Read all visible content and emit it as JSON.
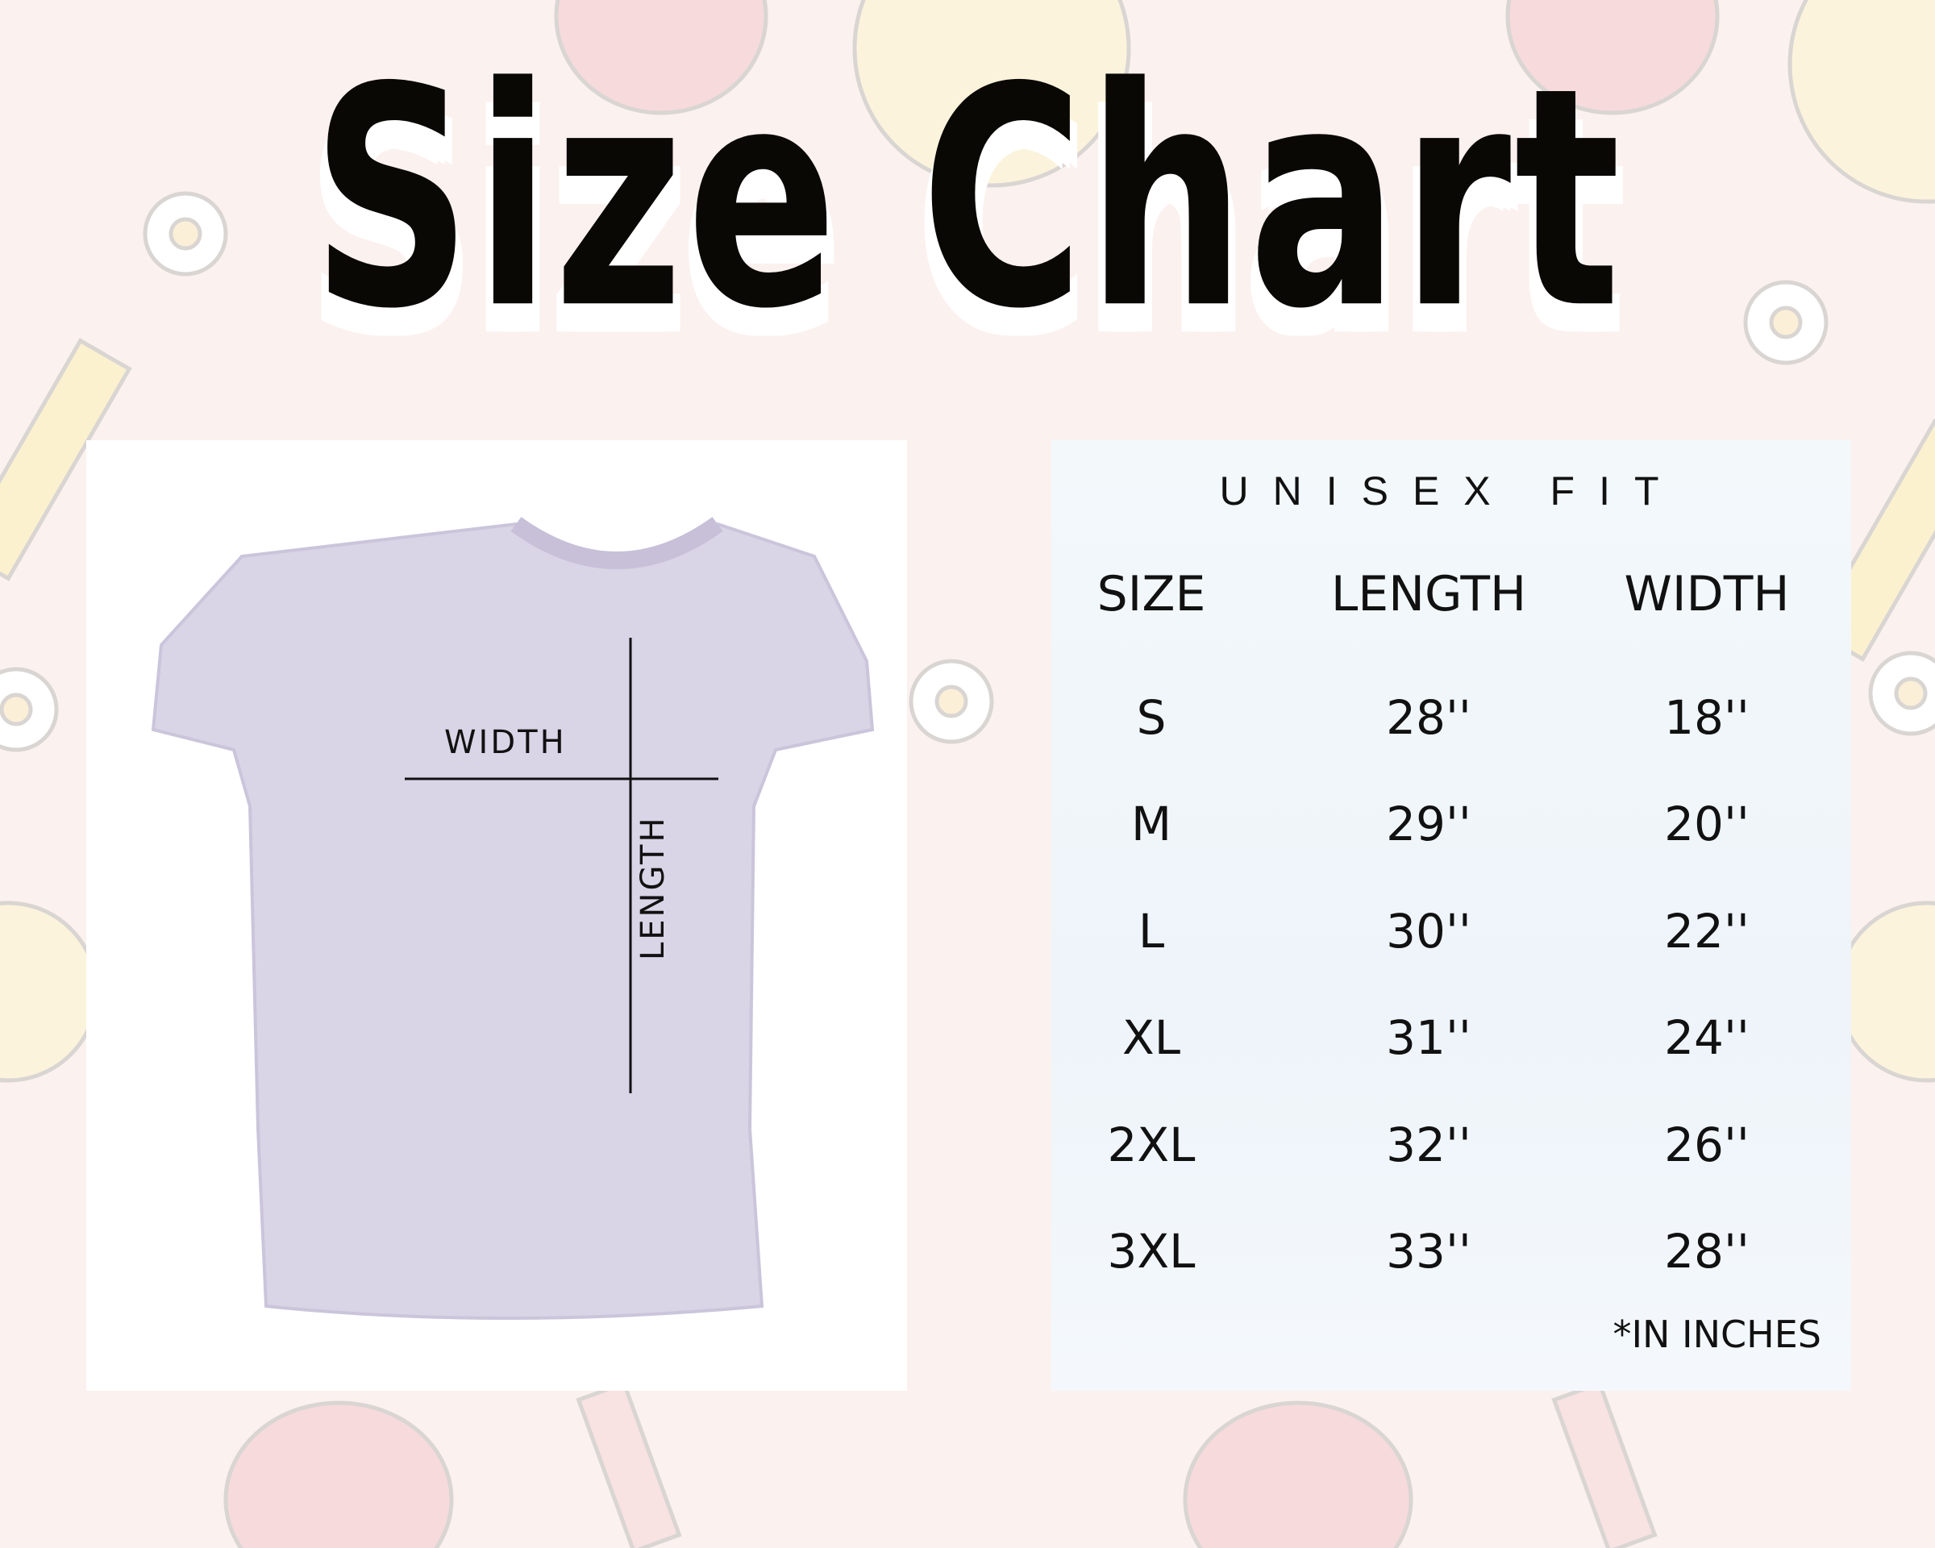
{
  "title": "Size Chart",
  "diagram": {
    "width_label": "WIDTH",
    "length_label": "LENGTH",
    "shirt_color": "#d9d4e6"
  },
  "table": {
    "heading": "UNISEX FIT",
    "columns": [
      "SIZE",
      "LENGTH",
      "WIDTH"
    ],
    "rows": [
      [
        "S",
        "28''",
        "18''"
      ],
      [
        "M",
        "29''",
        "20''"
      ],
      [
        "L",
        "30''",
        "22''"
      ],
      [
        "XL",
        "31''",
        "24''"
      ],
      [
        "2XL",
        "32''",
        "26''"
      ],
      [
        "3XL",
        "33''",
        "28''"
      ]
    ],
    "note": "*IN INCHES"
  },
  "colors": {
    "background": "#fbf1ef",
    "title": "#0a0805"
  }
}
